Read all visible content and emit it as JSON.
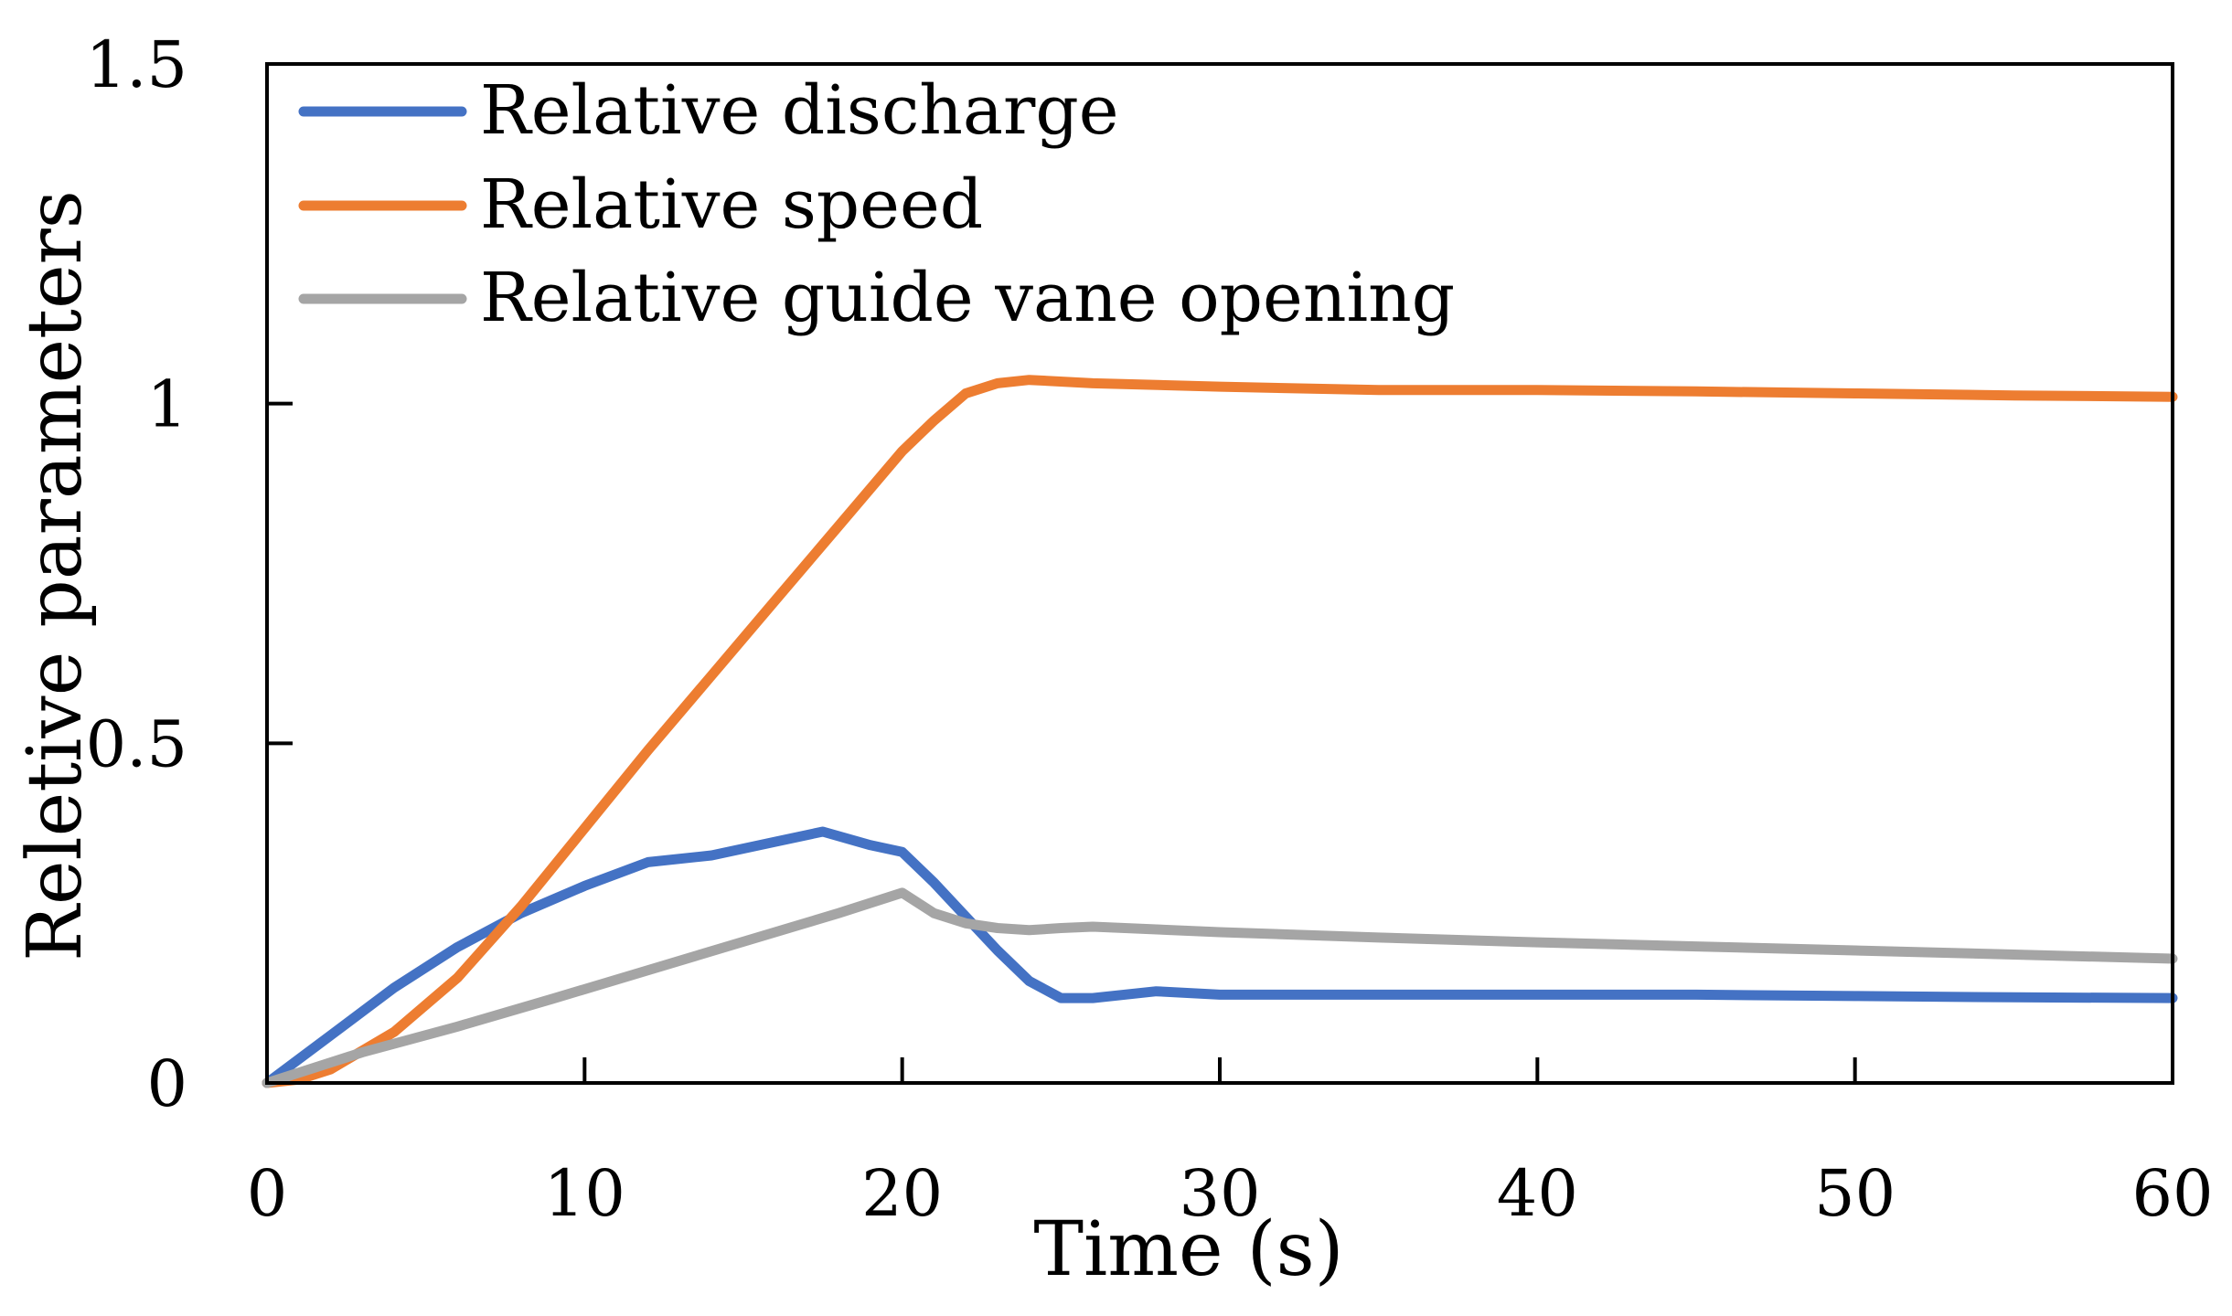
{
  "chart_data": {
    "type": "line",
    "title": "",
    "xlabel": "Time (s)",
    "ylabel": "Reletive parameters",
    "xlim": [
      0,
      60
    ],
    "ylim": [
      0,
      1.5
    ],
    "xticks": [
      0,
      10,
      20,
      30,
      40,
      50,
      60
    ],
    "yticks": [
      0,
      0.5,
      1,
      1.5
    ],
    "xtick_labels": [
      "0",
      "10",
      "20",
      "30",
      "40",
      "50",
      "60"
    ],
    "ytick_labels": [
      "0",
      "0.5",
      "1",
      "1.5"
    ],
    "grid": false,
    "legend_position": "top-left",
    "series": [
      {
        "name": "Relative discharge",
        "color": "#4472C4",
        "x": [
          0,
          2,
          4,
          6,
          8,
          10,
          12,
          14,
          16,
          17.5,
          19,
          20,
          21,
          22,
          23,
          24,
          25,
          26,
          28,
          30,
          35,
          40,
          45,
          50,
          55,
          60
        ],
        "y": [
          0,
          0.07,
          0.14,
          0.2,
          0.25,
          0.29,
          0.325,
          0.335,
          0.355,
          0.37,
          0.35,
          0.34,
          0.295,
          0.245,
          0.195,
          0.15,
          0.125,
          0.125,
          0.135,
          0.13,
          0.13,
          0.13,
          0.13,
          0.128,
          0.126,
          0.125
        ]
      },
      {
        "name": "Relative speed",
        "color": "#ED7D31",
        "x": [
          0,
          1,
          2,
          4,
          6,
          8,
          10,
          12,
          14,
          16,
          18,
          20,
          21,
          22,
          23,
          24,
          26,
          30,
          35,
          40,
          45,
          50,
          55,
          60
        ],
        "y": [
          0,
          0.005,
          0.02,
          0.075,
          0.155,
          0.26,
          0.375,
          0.49,
          0.6,
          0.71,
          0.82,
          0.93,
          0.975,
          1.015,
          1.03,
          1.035,
          1.03,
          1.025,
          1.02,
          1.02,
          1.018,
          1.015,
          1.012,
          1.01
        ]
      },
      {
        "name": "Relative guide vane opening",
        "color": "#A5A5A5",
        "x": [
          0,
          3,
          6,
          9,
          12,
          15,
          18,
          20,
          21,
          22,
          23,
          24,
          25,
          26,
          30,
          35,
          40,
          45,
          50,
          55,
          60
        ],
        "y": [
          0,
          0.045,
          0.083,
          0.124,
          0.166,
          0.208,
          0.25,
          0.28,
          0.25,
          0.235,
          0.228,
          0.225,
          0.228,
          0.23,
          0.222,
          0.214,
          0.207,
          0.201,
          0.195,
          0.189,
          0.183
        ]
      }
    ]
  }
}
